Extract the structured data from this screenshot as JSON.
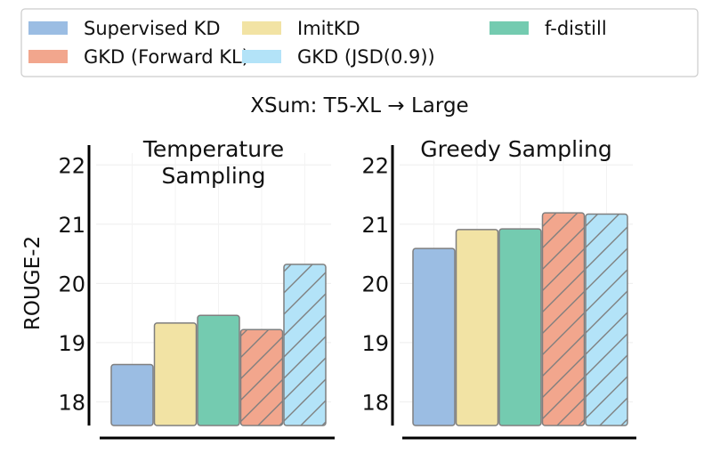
{
  "figure_title": "XSum: T5-XL → Large",
  "colors": {
    "Supervised KD": "#9bbde3",
    "ImitKD": "#f2e3a4",
    "f-distill": "#74cbb0",
    "GKD (Forward KL)": "#f2a68d",
    "GKD (JSD(0.9))": "#b3e3f8"
  },
  "hatched_series": [
    "GKD (Forward KL)",
    "GKD (JSD(0.9))"
  ],
  "chart_data": [
    {
      "type": "bar",
      "title": "Temperature Sampling",
      "title_lines": [
        "Temperature",
        "Sampling"
      ],
      "ylabel": "ROUGE-2",
      "xlabel": "",
      "ylim": [
        17.6,
        22.2
      ],
      "yticks": [
        18,
        19,
        20,
        21,
        22
      ],
      "grid": true,
      "categories": [
        "Supervised KD",
        "ImitKD",
        "f-distill",
        "GKD (Forward KL)",
        "GKD (JSD(0.9))"
      ],
      "values": [
        18.63,
        19.33,
        19.46,
        19.22,
        20.32
      ]
    },
    {
      "type": "bar",
      "title": "Greedy Sampling",
      "title_lines": [
        "Greedy Sampling"
      ],
      "ylabel": "",
      "xlabel": "",
      "ylim": [
        17.6,
        22.2
      ],
      "yticks": [
        18,
        19,
        20,
        21,
        22
      ],
      "grid": true,
      "categories": [
        "Supervised KD",
        "ImitKD",
        "f-distill",
        "GKD (Forward KL)",
        "GKD (JSD(0.9))"
      ],
      "values": [
        20.59,
        20.91,
        20.92,
        21.19,
        21.17
      ]
    }
  ],
  "legend": {
    "placement": "top",
    "entries": [
      "Supervised KD",
      "ImitKD",
      "f-distill",
      "GKD (Forward KL)",
      "GKD (JSD(0.9))"
    ]
  }
}
